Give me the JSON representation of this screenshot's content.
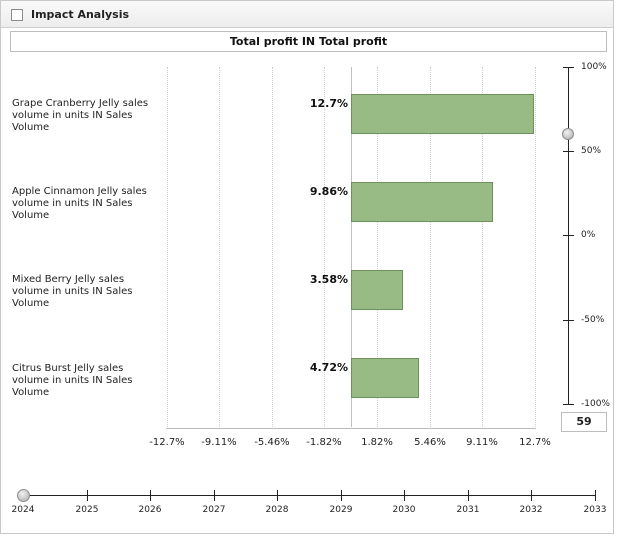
{
  "header": {
    "title": "Impact Analysis"
  },
  "chart_data": {
    "type": "bar",
    "orientation": "horizontal",
    "title": "Total profit IN Total profit",
    "categories": [
      "Grape Cranberry Jelly sales volume in units IN Sales Volume",
      "Apple Cinnamon Jelly sales volume in units IN Sales Volume",
      "Mixed Berry Jelly sales volume in units IN Sales Volume",
      "Citrus Burst Jelly sales volume in units IN Sales Volume"
    ],
    "values": [
      12.7,
      9.86,
      3.58,
      4.72
    ],
    "value_labels": [
      "12.7%",
      "9.86%",
      "3.58%",
      "4.72%"
    ],
    "x_ticks": [
      "-12.7%",
      "-9.11%",
      "-5.46%",
      "-1.82%",
      "1.82%",
      "5.46%",
      "9.11%",
      "12.7%"
    ],
    "xlim": [
      -12.7,
      12.7
    ],
    "bar_color": "#98bb85",
    "grid": true
  },
  "vertical_slider": {
    "labels": [
      "100%",
      "50%",
      "0%",
      "-50%",
      "-100%"
    ],
    "value_percent": 59,
    "value_display": "59"
  },
  "timeline": {
    "years": [
      "2024",
      "2025",
      "2026",
      "2027",
      "2028",
      "2029",
      "2030",
      "2031",
      "2032",
      "2033"
    ],
    "selected": "2024"
  }
}
